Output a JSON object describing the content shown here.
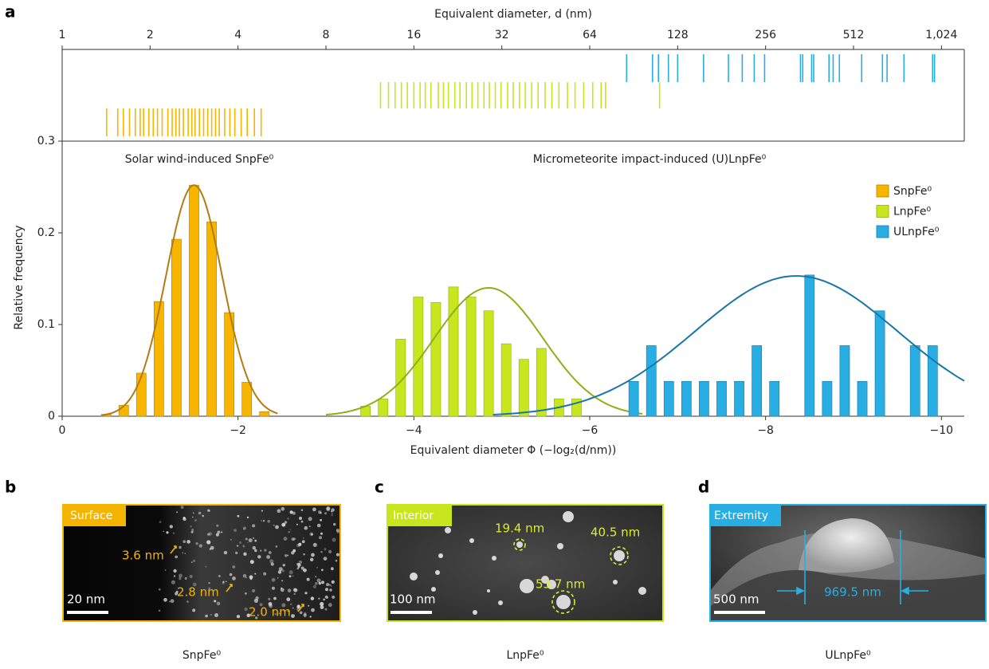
{
  "panel_label": "a",
  "chart_data": {
    "type": "bar",
    "xlabel": "Equivalent diameter Φ (−log₂(d/nm))",
    "ylabel": "Relative frequency",
    "x2label": "Equivalent diameter, d (nm)",
    "xlim": [
      0,
      -10.26
    ],
    "xticks": [
      0,
      {
        "value": -2,
        "label": "−2"
      },
      {
        "value": -4,
        "label": "−4"
      },
      {
        "value": -6,
        "label": "−6"
      },
      {
        "value": -8,
        "label": "−8"
      },
      {
        "value": -10,
        "label": "−10"
      }
    ],
    "x2lim": [
      1,
      1226
    ],
    "x2scale": "log2",
    "x2ticks": [
      1,
      2,
      4,
      8,
      16,
      32,
      64,
      128,
      256,
      512,
      {
        "value": 1024,
        "label": "1,024"
      }
    ],
    "ylim": [
      0,
      0.3
    ],
    "yticks": [
      0,
      0.1,
      0.2,
      0.3
    ],
    "annotations": [
      "Solar wind-induced SnpFe⁰",
      "Micrometeorite impact-induced (U)LnpFe⁰"
    ],
    "legend": "upper right",
    "series": [
      {
        "name": "SnpFe⁰",
        "color": "#f7b500",
        "fit_color": "#b27c12",
        "x": [
          -0.5,
          -0.7,
          -0.9,
          -1.1,
          -1.3,
          -1.5,
          -1.7,
          -1.9,
          -2.1,
          -2.3
        ],
        "values": [
          0.002,
          0.012,
          0.047,
          0.125,
          0.193,
          0.252,
          0.212,
          0.113,
          0.037,
          0.005
        ],
        "fit": {
          "mean": -1.5,
          "sd": 0.32,
          "peak": 0.252,
          "range": [
            -0.45,
            -2.45
          ]
        },
        "rug": [
          1.42,
          1.55,
          1.62,
          1.7,
          1.78,
          1.85,
          1.9,
          1.98,
          2.05,
          2.12,
          2.2,
          2.3,
          2.38,
          2.45,
          2.52,
          2.6,
          2.7,
          2.78,
          2.85,
          2.95,
          3.05,
          3.15,
          3.25,
          3.35,
          3.45,
          3.6,
          3.75,
          3.9,
          4.1,
          4.3,
          4.55,
          4.8
        ]
      },
      {
        "name": "LnpFe⁰",
        "color": "#c8e61e",
        "fit_color": "#8fae18",
        "x": [
          -3.45,
          -3.65,
          -3.85,
          -4.05,
          -4.25,
          -4.45,
          -4.65,
          -4.85,
          -5.05,
          -5.25,
          -5.45,
          -5.65,
          -5.85
        ],
        "values": [
          0.011,
          0.019,
          0.084,
          0.13,
          0.124,
          0.141,
          0.13,
          0.115,
          0.079,
          0.062,
          0.074,
          0.019,
          0.019
        ],
        "fit": {
          "mean": -4.85,
          "sd": 0.62,
          "peak": 0.14,
          "range": [
            -3.0,
            -6.6
          ]
        },
        "rug": [
          12.3,
          13.1,
          13.8,
          14.5,
          15.2,
          16.0,
          16.8,
          17.5,
          18.3,
          19.4,
          20.2,
          21.0,
          22.1,
          23.0,
          24.2,
          25.3,
          26.5,
          27.8,
          29.0,
          30.4,
          31.8,
          33.5,
          35.0,
          36.8,
          38.5,
          40.5,
          42.6,
          45.0,
          47.5,
          50.2,
          53.7,
          57.0,
          61.0,
          65.5,
          70.0,
          72.5,
          111
        ]
      },
      {
        "name": "ULnpFe⁰",
        "color": "#29aee3",
        "fit_color": "#1876a8",
        "x": [
          -6.5,
          -6.7,
          -6.9,
          -7.1,
          -7.3,
          -7.5,
          -7.7,
          -7.9,
          -8.1,
          -8.5,
          -8.7,
          -8.9,
          -9.1,
          -9.3,
          -9.7,
          -9.9
        ],
        "values": [
          0.038,
          0.077,
          0.038,
          0.038,
          0.038,
          0.038,
          0.038,
          0.077,
          0.038,
          0.154,
          0.038,
          0.077,
          0.038,
          0.115,
          0.077,
          0.077
        ],
        "fit": {
          "mean": -8.35,
          "sd": 1.15,
          "peak": 0.153,
          "range": [
            -4.9,
            -10.26
          ]
        },
        "rug": [
          85.6,
          105,
          110,
          119,
          128,
          157,
          191,
          213,
          234,
          254,
          337,
          343,
          368,
          374,
          422,
          436,
          458,
          546,
          643,
          667,
          762,
          955,
          969.5
        ]
      }
    ]
  },
  "panels": [
    {
      "letter": "b",
      "tag": "Surface",
      "scale_bar": "20 nm",
      "caption": "SnpFe⁰",
      "annotations": [
        "3.6 nm",
        "2.8 nm",
        "2.0 nm"
      ]
    },
    {
      "letter": "c",
      "tag": "Interior",
      "scale_bar": "100 nm",
      "caption": "LnpFe⁰",
      "annotations": [
        "19.4 nm",
        "40.5 nm",
        "53.7 nm"
      ]
    },
    {
      "letter": "d",
      "tag": "Extremity",
      "scale_bar": "500 nm",
      "caption": "ULnpFe⁰",
      "annotations": [
        "969.5 nm"
      ]
    }
  ]
}
